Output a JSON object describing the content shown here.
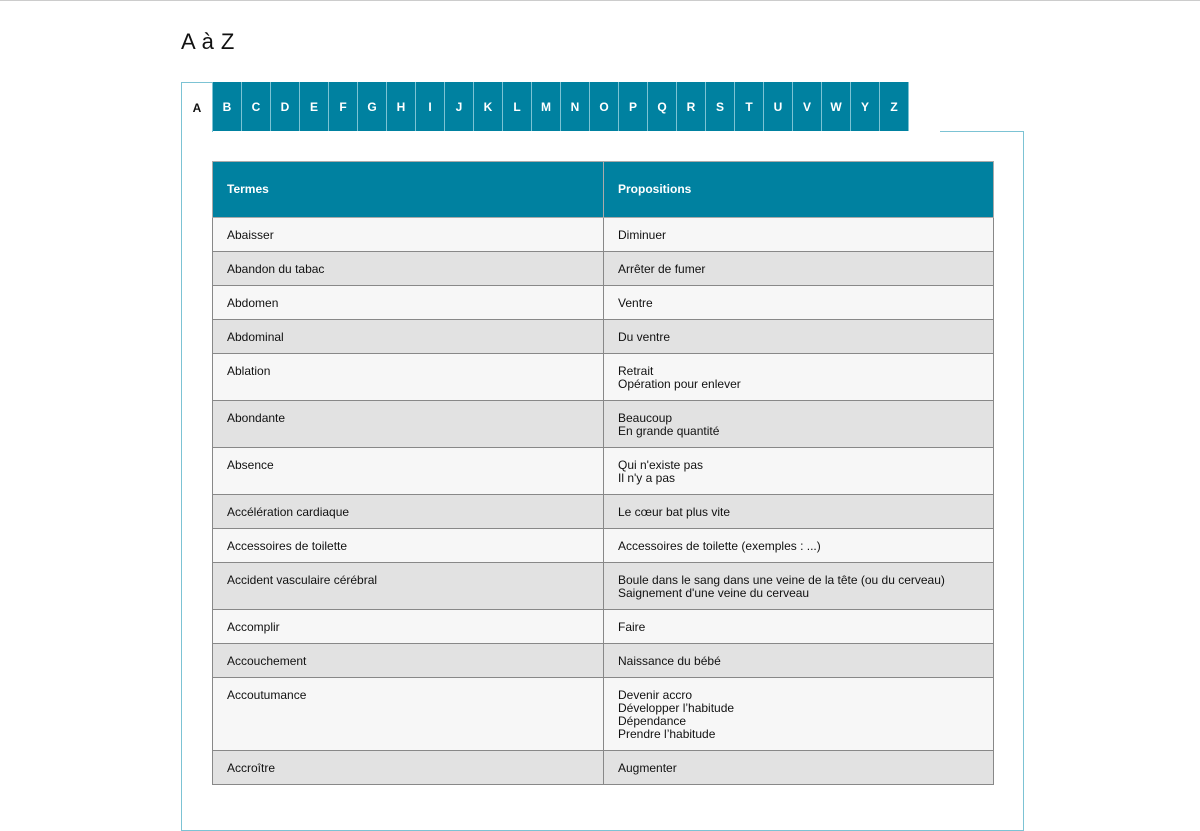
{
  "title": "A à Z",
  "tabs": [
    "A",
    "B",
    "C",
    "D",
    "E",
    "F",
    "G",
    "H",
    "I",
    "J",
    "K",
    "L",
    "M",
    "N",
    "O",
    "P",
    "Q",
    "R",
    "S",
    "T",
    "U",
    "V",
    "W",
    "Y",
    "Z"
  ],
  "active_tab": "A",
  "colors": {
    "accent": "#0081a0",
    "row_light": "#f7f7f7",
    "row_dark": "#e2e2e2"
  },
  "table": {
    "headers": [
      "Termes",
      "Propositions"
    ],
    "rows": [
      {
        "term": "Abaisser",
        "props": [
          "Diminuer"
        ]
      },
      {
        "term": "Abandon du tabac",
        "props": [
          "Arrêter de fumer"
        ]
      },
      {
        "term": "Abdomen",
        "props": [
          "Ventre"
        ]
      },
      {
        "term": "Abdominal",
        "props": [
          "Du ventre"
        ]
      },
      {
        "term": "Ablation",
        "props": [
          "Retrait",
          "Opération pour enlever"
        ]
      },
      {
        "term": "Abondante",
        "props": [
          "Beaucoup",
          "En grande quantité"
        ]
      },
      {
        "term": "Absence",
        "props": [
          "Qui n'existe pas",
          "Il n'y a pas"
        ]
      },
      {
        "term": "Accélération cardiaque",
        "props": [
          "Le cœur bat plus vite"
        ]
      },
      {
        "term": "Accessoires de toilette",
        "props": [
          "Accessoires de toilette (exemples : ...)"
        ]
      },
      {
        "term": "Accident vasculaire cérébral",
        "props": [
          "Boule dans le sang dans une veine de la tête (ou du cerveau)",
          "Saignement d'une veine du cerveau"
        ]
      },
      {
        "term": "Accomplir",
        "props": [
          "Faire"
        ]
      },
      {
        "term": "Accouchement",
        "props": [
          "Naissance du bébé"
        ]
      },
      {
        "term": "Accoutumance",
        "props": [
          "Devenir accro",
          "Développer l’habitude",
          "Dépendance",
          "Prendre l’habitude"
        ]
      },
      {
        "term": "Accroître",
        "props": [
          "Augmenter"
        ]
      }
    ]
  }
}
